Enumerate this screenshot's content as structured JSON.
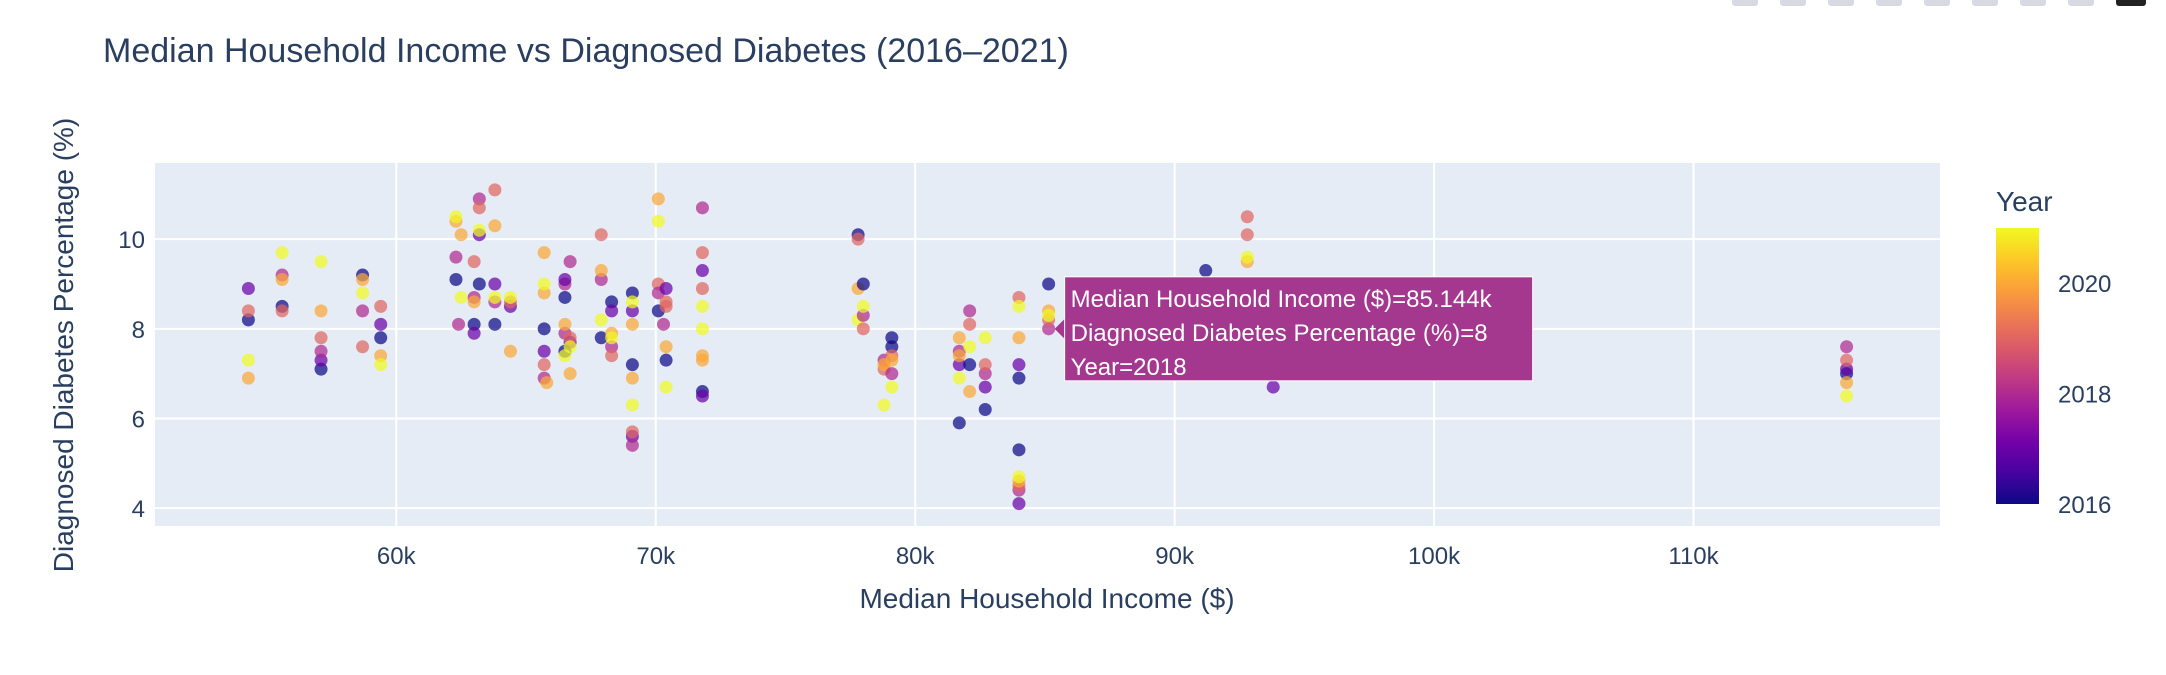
{
  "chart_data": {
    "type": "scatter",
    "title": "Median Household Income vs Diagnosed Diabetes (2016–2021)",
    "xlabel": "Median Household Income ($)",
    "ylabel": "Diagnosed Diabetes Percentage (%)",
    "xlim": [
      50700,
      119500
    ],
    "ylim": [
      3.6,
      11.7
    ],
    "x_ticks": [
      60000,
      70000,
      80000,
      90000,
      100000,
      110000
    ],
    "x_tick_labels": [
      "60k",
      "70k",
      "80k",
      "90k",
      "100k",
      "110k"
    ],
    "y_ticks": [
      4,
      6,
      8,
      10
    ],
    "y_tick_labels": [
      "4",
      "6",
      "8",
      "10"
    ],
    "grid": true,
    "colorbar": {
      "title": "Year",
      "min": 2016,
      "max": 2021,
      "ticks": [
        2016,
        2018,
        2020
      ],
      "tick_labels": [
        "2016",
        "2018",
        "2020"
      ],
      "colorscale": [
        "#0d0887",
        "#46039f",
        "#7201a8",
        "#9c179e",
        "#bd3786",
        "#d8576b",
        "#ed7953",
        "#fb9f3a",
        "#fdca26",
        "#f0f921"
      ]
    },
    "points": [
      {
        "x": 54300,
        "y": 8.2,
        "year": 2016
      },
      {
        "x": 54300,
        "y": 8.9,
        "year": 2017
      },
      {
        "x": 54300,
        "y": 8.4,
        "year": 2019
      },
      {
        "x": 54300,
        "y": 6.9,
        "year": 2020
      },
      {
        "x": 54300,
        "y": 7.3,
        "year": 2021
      },
      {
        "x": 55600,
        "y": 8.5,
        "year": 2016
      },
      {
        "x": 55600,
        "y": 9.2,
        "year": 2018
      },
      {
        "x": 55600,
        "y": 9.1,
        "year": 2020
      },
      {
        "x": 55600,
        "y": 9.7,
        "year": 2021
      },
      {
        "x": 55600,
        "y": 8.4,
        "year": 2019
      },
      {
        "x": 57100,
        "y": 7.1,
        "year": 2016
      },
      {
        "x": 57100,
        "y": 7.3,
        "year": 2017
      },
      {
        "x": 57100,
        "y": 7.5,
        "year": 2018
      },
      {
        "x": 57100,
        "y": 7.8,
        "year": 2019
      },
      {
        "x": 57100,
        "y": 8.4,
        "year": 2020
      },
      {
        "x": 57100,
        "y": 9.5,
        "year": 2021
      },
      {
        "x": 58700,
        "y": 9.2,
        "year": 2016
      },
      {
        "x": 58700,
        "y": 8.4,
        "year": 2018
      },
      {
        "x": 58700,
        "y": 7.6,
        "year": 2019
      },
      {
        "x": 58700,
        "y": 9.1,
        "year": 2020
      },
      {
        "x": 58700,
        "y": 8.8,
        "year": 2021
      },
      {
        "x": 59400,
        "y": 7.8,
        "year": 2016
      },
      {
        "x": 59400,
        "y": 8.1,
        "year": 2017
      },
      {
        "x": 59400,
        "y": 8.5,
        "year": 2019
      },
      {
        "x": 59400,
        "y": 7.4,
        "year": 2020
      },
      {
        "x": 59400,
        "y": 7.2,
        "year": 2021
      },
      {
        "x": 62300,
        "y": 9.1,
        "year": 2016
      },
      {
        "x": 62300,
        "y": 9.6,
        "year": 2018
      },
      {
        "x": 62300,
        "y": 10.4,
        "year": 2020
      },
      {
        "x": 62300,
        "y": 10.5,
        "year": 2021
      },
      {
        "x": 62400,
        "y": 8.1,
        "year": 2018
      },
      {
        "x": 62500,
        "y": 8.7,
        "year": 2021
      },
      {
        "x": 62500,
        "y": 10.1,
        "year": 2020
      },
      {
        "x": 63000,
        "y": 8.1,
        "year": 2016
      },
      {
        "x": 63000,
        "y": 7.9,
        "year": 2017
      },
      {
        "x": 63000,
        "y": 8.7,
        "year": 2018
      },
      {
        "x": 63000,
        "y": 9.5,
        "year": 2019
      },
      {
        "x": 63000,
        "y": 8.6,
        "year": 2020
      },
      {
        "x": 63200,
        "y": 9.0,
        "year": 2016
      },
      {
        "x": 63200,
        "y": 10.1,
        "year": 2017
      },
      {
        "x": 63200,
        "y": 10.9,
        "year": 2018
      },
      {
        "x": 63200,
        "y": 10.7,
        "year": 2019
      },
      {
        "x": 63200,
        "y": 10.2,
        "year": 2021
      },
      {
        "x": 63800,
        "y": 8.1,
        "year": 2016
      },
      {
        "x": 63800,
        "y": 9.0,
        "year": 2017
      },
      {
        "x": 63800,
        "y": 8.6,
        "year": 2018
      },
      {
        "x": 63800,
        "y": 11.1,
        "year": 2019
      },
      {
        "x": 63800,
        "y": 10.3,
        "year": 2020
      },
      {
        "x": 63800,
        "y": 8.7,
        "year": 2021
      },
      {
        "x": 64400,
        "y": 8.5,
        "year": 2017
      },
      {
        "x": 64400,
        "y": 8.6,
        "year": 2019
      },
      {
        "x": 64400,
        "y": 7.5,
        "year": 2020
      },
      {
        "x": 64400,
        "y": 8.7,
        "year": 2021
      },
      {
        "x": 65700,
        "y": 8.0,
        "year": 2016
      },
      {
        "x": 65700,
        "y": 7.5,
        "year": 2017
      },
      {
        "x": 65700,
        "y": 6.9,
        "year": 2018
      },
      {
        "x": 65700,
        "y": 7.2,
        "year": 2019
      },
      {
        "x": 65700,
        "y": 8.8,
        "year": 2020
      },
      {
        "x": 65700,
        "y": 9.7,
        "year": 2020
      },
      {
        "x": 65700,
        "y": 9.0,
        "year": 2021
      },
      {
        "x": 65800,
        "y": 6.8,
        "year": 2020
      },
      {
        "x": 66500,
        "y": 8.7,
        "year": 2016
      },
      {
        "x": 66500,
        "y": 7.5,
        "year": 2016
      },
      {
        "x": 66500,
        "y": 9.0,
        "year": 2018
      },
      {
        "x": 66500,
        "y": 9.1,
        "year": 2017
      },
      {
        "x": 66500,
        "y": 7.9,
        "year": 2018
      },
      {
        "x": 66500,
        "y": 8.1,
        "year": 2020
      },
      {
        "x": 66500,
        "y": 7.4,
        "year": 2021
      },
      {
        "x": 66700,
        "y": 7.7,
        "year": 2017
      },
      {
        "x": 66700,
        "y": 9.5,
        "year": 2018
      },
      {
        "x": 66700,
        "y": 7.8,
        "year": 2019
      },
      {
        "x": 66700,
        "y": 7.0,
        "year": 2020
      },
      {
        "x": 66700,
        "y": 7.6,
        "year": 2021
      },
      {
        "x": 67900,
        "y": 7.8,
        "year": 2016
      },
      {
        "x": 67900,
        "y": 9.1,
        "year": 2018
      },
      {
        "x": 67900,
        "y": 10.1,
        "year": 2019
      },
      {
        "x": 67900,
        "y": 9.3,
        "year": 2020
      },
      {
        "x": 67900,
        "y": 8.2,
        "year": 2021
      },
      {
        "x": 68300,
        "y": 8.6,
        "year": 2016
      },
      {
        "x": 68300,
        "y": 8.4,
        "year": 2017
      },
      {
        "x": 68300,
        "y": 7.6,
        "year": 2018
      },
      {
        "x": 68300,
        "y": 7.4,
        "year": 2019
      },
      {
        "x": 68300,
        "y": 7.9,
        "year": 2020
      },
      {
        "x": 68300,
        "y": 7.8,
        "year": 2021
      },
      {
        "x": 69100,
        "y": 8.8,
        "year": 2016
      },
      {
        "x": 69100,
        "y": 7.2,
        "year": 2016
      },
      {
        "x": 69100,
        "y": 8.4,
        "year": 2017
      },
      {
        "x": 69100,
        "y": 5.6,
        "year": 2017
      },
      {
        "x": 69100,
        "y": 5.4,
        "year": 2018
      },
      {
        "x": 69100,
        "y": 5.7,
        "year": 2019
      },
      {
        "x": 69100,
        "y": 8.1,
        "year": 2020
      },
      {
        "x": 69100,
        "y": 6.9,
        "year": 2020
      },
      {
        "x": 69100,
        "y": 8.6,
        "year": 2021
      },
      {
        "x": 69100,
        "y": 6.3,
        "year": 2021
      },
      {
        "x": 70100,
        "y": 8.4,
        "year": 2016
      },
      {
        "x": 70100,
        "y": 9.0,
        "year": 2019
      },
      {
        "x": 70100,
        "y": 8.8,
        "year": 2018
      },
      {
        "x": 70100,
        "y": 10.9,
        "year": 2020
      },
      {
        "x": 70100,
        "y": 10.4,
        "year": 2021
      },
      {
        "x": 70300,
        "y": 8.1,
        "year": 2018
      },
      {
        "x": 70400,
        "y": 7.3,
        "year": 2016
      },
      {
        "x": 70400,
        "y": 8.9,
        "year": 2017
      },
      {
        "x": 70400,
        "y": 8.5,
        "year": 2019
      },
      {
        "x": 70400,
        "y": 8.6,
        "year": 2019
      },
      {
        "x": 70400,
        "y": 7.6,
        "year": 2020
      },
      {
        "x": 70400,
        "y": 6.7,
        "year": 2021
      },
      {
        "x": 71800,
        "y": 6.6,
        "year": 2016
      },
      {
        "x": 71800,
        "y": 6.5,
        "year": 2017
      },
      {
        "x": 71800,
        "y": 9.3,
        "year": 2017
      },
      {
        "x": 71800,
        "y": 10.7,
        "year": 2018
      },
      {
        "x": 71800,
        "y": 8.9,
        "year": 2019
      },
      {
        "x": 71800,
        "y": 9.7,
        "year": 2019
      },
      {
        "x": 71800,
        "y": 7.3,
        "year": 2020
      },
      {
        "x": 71800,
        "y": 7.4,
        "year": 2020
      },
      {
        "x": 71800,
        "y": 8.0,
        "year": 2021
      },
      {
        "x": 71800,
        "y": 8.5,
        "year": 2021
      },
      {
        "x": 77800,
        "y": 10.1,
        "year": 2016
      },
      {
        "x": 77800,
        "y": 10.0,
        "year": 2019
      },
      {
        "x": 77800,
        "y": 8.9,
        "year": 2020
      },
      {
        "x": 77800,
        "y": 8.2,
        "year": 2021
      },
      {
        "x": 78000,
        "y": 9.0,
        "year": 2016
      },
      {
        "x": 78000,
        "y": 8.3,
        "year": 2018
      },
      {
        "x": 78000,
        "y": 8.0,
        "year": 2019
      },
      {
        "x": 78000,
        "y": 8.5,
        "year": 2021
      },
      {
        "x": 78800,
        "y": 7.3,
        "year": 2018
      },
      {
        "x": 78800,
        "y": 7.1,
        "year": 2019
      },
      {
        "x": 78800,
        "y": 7.2,
        "year": 2020
      },
      {
        "x": 78800,
        "y": 6.3,
        "year": 2021
      },
      {
        "x": 79100,
        "y": 7.8,
        "year": 2016
      },
      {
        "x": 79100,
        "y": 7.6,
        "year": 2016
      },
      {
        "x": 79100,
        "y": 7.0,
        "year": 2018
      },
      {
        "x": 79100,
        "y": 7.4,
        "year": 2019
      },
      {
        "x": 79100,
        "y": 7.3,
        "year": 2020
      },
      {
        "x": 79100,
        "y": 6.7,
        "year": 2021
      },
      {
        "x": 81700,
        "y": 5.9,
        "year": 2016
      },
      {
        "x": 81700,
        "y": 7.2,
        "year": 2017
      },
      {
        "x": 81700,
        "y": 7.5,
        "year": 2018
      },
      {
        "x": 81700,
        "y": 7.4,
        "year": 2020
      },
      {
        "x": 81700,
        "y": 7.8,
        "year": 2020
      },
      {
        "x": 81700,
        "y": 6.9,
        "year": 2021
      },
      {
        "x": 82100,
        "y": 7.2,
        "year": 2016
      },
      {
        "x": 82100,
        "y": 8.4,
        "year": 2018
      },
      {
        "x": 82100,
        "y": 8.1,
        "year": 2019
      },
      {
        "x": 82100,
        "y": 6.6,
        "year": 2020
      },
      {
        "x": 82100,
        "y": 7.6,
        "year": 2021
      },
      {
        "x": 82700,
        "y": 6.2,
        "year": 2016
      },
      {
        "x": 82700,
        "y": 6.7,
        "year": 2017
      },
      {
        "x": 82700,
        "y": 7.0,
        "year": 2018
      },
      {
        "x": 82700,
        "y": 7.2,
        "year": 2019
      },
      {
        "x": 82700,
        "y": 7.8,
        "year": 2021
      },
      {
        "x": 84000,
        "y": 5.3,
        "year": 2016
      },
      {
        "x": 84000,
        "y": 6.9,
        "year": 2016
      },
      {
        "x": 84000,
        "y": 4.1,
        "year": 2017
      },
      {
        "x": 84000,
        "y": 7.2,
        "year": 2017
      },
      {
        "x": 84000,
        "y": 4.4,
        "year": 2018
      },
      {
        "x": 84000,
        "y": 4.5,
        "year": 2019
      },
      {
        "x": 84000,
        "y": 8.7,
        "year": 2019
      },
      {
        "x": 84000,
        "y": 7.8,
        "year": 2020
      },
      {
        "x": 84000,
        "y": 4.6,
        "year": 2020
      },
      {
        "x": 84000,
        "y": 4.7,
        "year": 2021
      },
      {
        "x": 84000,
        "y": 8.5,
        "year": 2021
      },
      {
        "x": 85144,
        "y": 9.0,
        "year": 2016
      },
      {
        "x": 85144,
        "y": 8.0,
        "year": 2018
      },
      {
        "x": 85144,
        "y": 8.2,
        "year": 2019
      },
      {
        "x": 85144,
        "y": 8.4,
        "year": 2020
      },
      {
        "x": 85144,
        "y": 8.3,
        "year": 2021
      },
      {
        "x": 91200,
        "y": 9.3,
        "year": 2016
      },
      {
        "x": 91200,
        "y": 8.2,
        "year": 2017
      },
      {
        "x": 92800,
        "y": 10.5,
        "year": 2019
      },
      {
        "x": 92800,
        "y": 10.1,
        "year": 2019
      },
      {
        "x": 92800,
        "y": 9.5,
        "year": 2020
      },
      {
        "x": 92800,
        "y": 9.6,
        "year": 2021
      },
      {
        "x": 93800,
        "y": 6.7,
        "year": 2017
      },
      {
        "x": 115900,
        "y": 7.0,
        "year": 2016
      },
      {
        "x": 115900,
        "y": 7.1,
        "year": 2017
      },
      {
        "x": 115900,
        "y": 7.6,
        "year": 2018
      },
      {
        "x": 115900,
        "y": 7.3,
        "year": 2019
      },
      {
        "x": 115900,
        "y": 6.8,
        "year": 2020
      },
      {
        "x": 115900,
        "y": 6.5,
        "year": 2021
      }
    ],
    "hover": {
      "lines": [
        "Median Household Income ($)=85.144k",
        "Diagnosed Diabetes Percentage (%)=8",
        "Year=2018"
      ],
      "x": 85144,
      "y": 8,
      "year": 2018,
      "color": "#a4378e"
    }
  }
}
